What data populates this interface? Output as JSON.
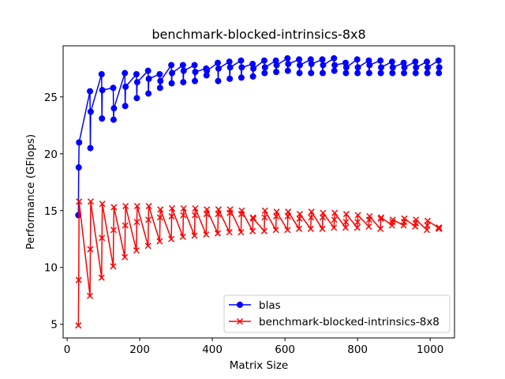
{
  "chart_data": {
    "type": "line",
    "title": "benchmark-blocked-intrinsics-8x8",
    "xlabel": "Matrix Size",
    "ylabel": "Performance (GFlops)",
    "xlim": [
      -11,
      1067
    ],
    "ylim": [
      3.8,
      29.5
    ],
    "xticks": [
      0,
      200,
      400,
      600,
      800,
      1000
    ],
    "yticks": [
      5,
      10,
      15,
      20,
      25
    ],
    "grid": false,
    "legend_position": "lower-right",
    "series": [
      {
        "name": "blas",
        "color": "#0000ff",
        "marker": "circle",
        "x": [
          31,
          32,
          33,
          63,
          64,
          65,
          95,
          96,
          97,
          127,
          128,
          129,
          159,
          160,
          161,
          191,
          192,
          193,
          223,
          224,
          225,
          255,
          256,
          257,
          287,
          288,
          289,
          319,
          320,
          321,
          351,
          352,
          353,
          383,
          384,
          385,
          415,
          416,
          417,
          447,
          448,
          449,
          479,
          480,
          481,
          511,
          512,
          513,
          543,
          544,
          545,
          575,
          576,
          577,
          607,
          608,
          609,
          639,
          640,
          641,
          671,
          672,
          673,
          703,
          704,
          705,
          735,
          736,
          737,
          767,
          768,
          769,
          799,
          800,
          801,
          831,
          832,
          833,
          863,
          864,
          865,
          895,
          896,
          897,
          927,
          928,
          929,
          959,
          960,
          961,
          991,
          992,
          993,
          1023,
          1024,
          1025
        ],
        "y": [
          14.6,
          18.8,
          21.0,
          25.5,
          20.5,
          23.7,
          27.0,
          23.1,
          25.6,
          25.8,
          23.0,
          24.0,
          27.1,
          24.2,
          25.9,
          27.0,
          24.9,
          26.3,
          27.3,
          25.3,
          26.6,
          27.0,
          25.8,
          26.4,
          27.8,
          26.2,
          27.1,
          27.8,
          26.3,
          27.3,
          27.8,
          26.4,
          27.2,
          27.5,
          26.9,
          27.3,
          28.0,
          26.4,
          27.5,
          28.1,
          26.6,
          27.6,
          28.2,
          26.7,
          27.6,
          27.9,
          26.8,
          27.5,
          28.2,
          27.1,
          27.6,
          28.2,
          27.2,
          27.8,
          28.4,
          27.3,
          27.9,
          28.3,
          27.1,
          27.8,
          28.3,
          27.1,
          27.9,
          28.3,
          27.1,
          27.8,
          28.4,
          27.3,
          27.8,
          28.0,
          27.1,
          27.6,
          28.3,
          27.1,
          27.6,
          28.2,
          27.1,
          27.8,
          28.2,
          27.1,
          27.6,
          28.1,
          27.1,
          27.6,
          28.0,
          27.1,
          27.6,
          28.1,
          27.1,
          27.6,
          28.1,
          27.1,
          27.6,
          28.2,
          27.1,
          27.6
        ]
      },
      {
        "name": "benchmark-blocked-intrinsics-8x8",
        "color": "#ff0000",
        "marker": "x",
        "x": [
          31,
          32,
          33,
          63,
          64,
          65,
          95,
          96,
          97,
          127,
          128,
          129,
          159,
          160,
          161,
          191,
          192,
          193,
          223,
          224,
          225,
          255,
          256,
          257,
          287,
          288,
          289,
          319,
          320,
          321,
          351,
          352,
          353,
          383,
          384,
          385,
          415,
          416,
          417,
          447,
          448,
          449,
          479,
          480,
          481,
          511,
          512,
          513,
          543,
          544,
          545,
          575,
          576,
          577,
          607,
          608,
          609,
          639,
          640,
          641,
          671,
          672,
          673,
          703,
          704,
          705,
          735,
          736,
          737,
          767,
          768,
          769,
          799,
          800,
          801,
          831,
          832,
          833,
          863,
          864,
          865,
          895,
          896,
          897,
          927,
          928,
          929,
          959,
          960,
          961,
          991,
          992,
          993,
          1023,
          1024,
          1025
        ],
        "y": [
          4.9,
          8.9,
          15.8,
          7.5,
          11.6,
          15.8,
          9.1,
          12.6,
          15.6,
          10.1,
          13.3,
          15.3,
          10.9,
          13.7,
          15.4,
          11.5,
          14.0,
          15.4,
          11.9,
          14.2,
          15.4,
          12.3,
          14.4,
          15.1,
          12.5,
          14.5,
          15.2,
          12.7,
          14.6,
          15.2,
          12.8,
          14.6,
          15.2,
          12.9,
          14.7,
          15.1,
          13.0,
          14.7,
          15.1,
          13.1,
          14.8,
          15.1,
          13.1,
          14.7,
          15.0,
          13.2,
          14.4,
          14.3,
          13.2,
          14.4,
          15.0,
          13.3,
          14.5,
          14.9,
          13.3,
          14.5,
          14.9,
          13.4,
          14.3,
          14.7,
          13.4,
          14.4,
          14.9,
          13.4,
          14.4,
          14.8,
          13.5,
          14.2,
          14.8,
          13.5,
          14.0,
          14.7,
          13.5,
          14.0,
          14.6,
          13.6,
          14.2,
          14.5,
          13.4,
          14.3,
          14.4,
          13.7,
          14.0,
          14.2,
          13.7,
          14.0,
          14.3,
          13.6,
          13.9,
          14.2,
          13.3,
          13.7,
          14.1,
          13.5,
          13.4,
          13.5
        ]
      }
    ]
  }
}
